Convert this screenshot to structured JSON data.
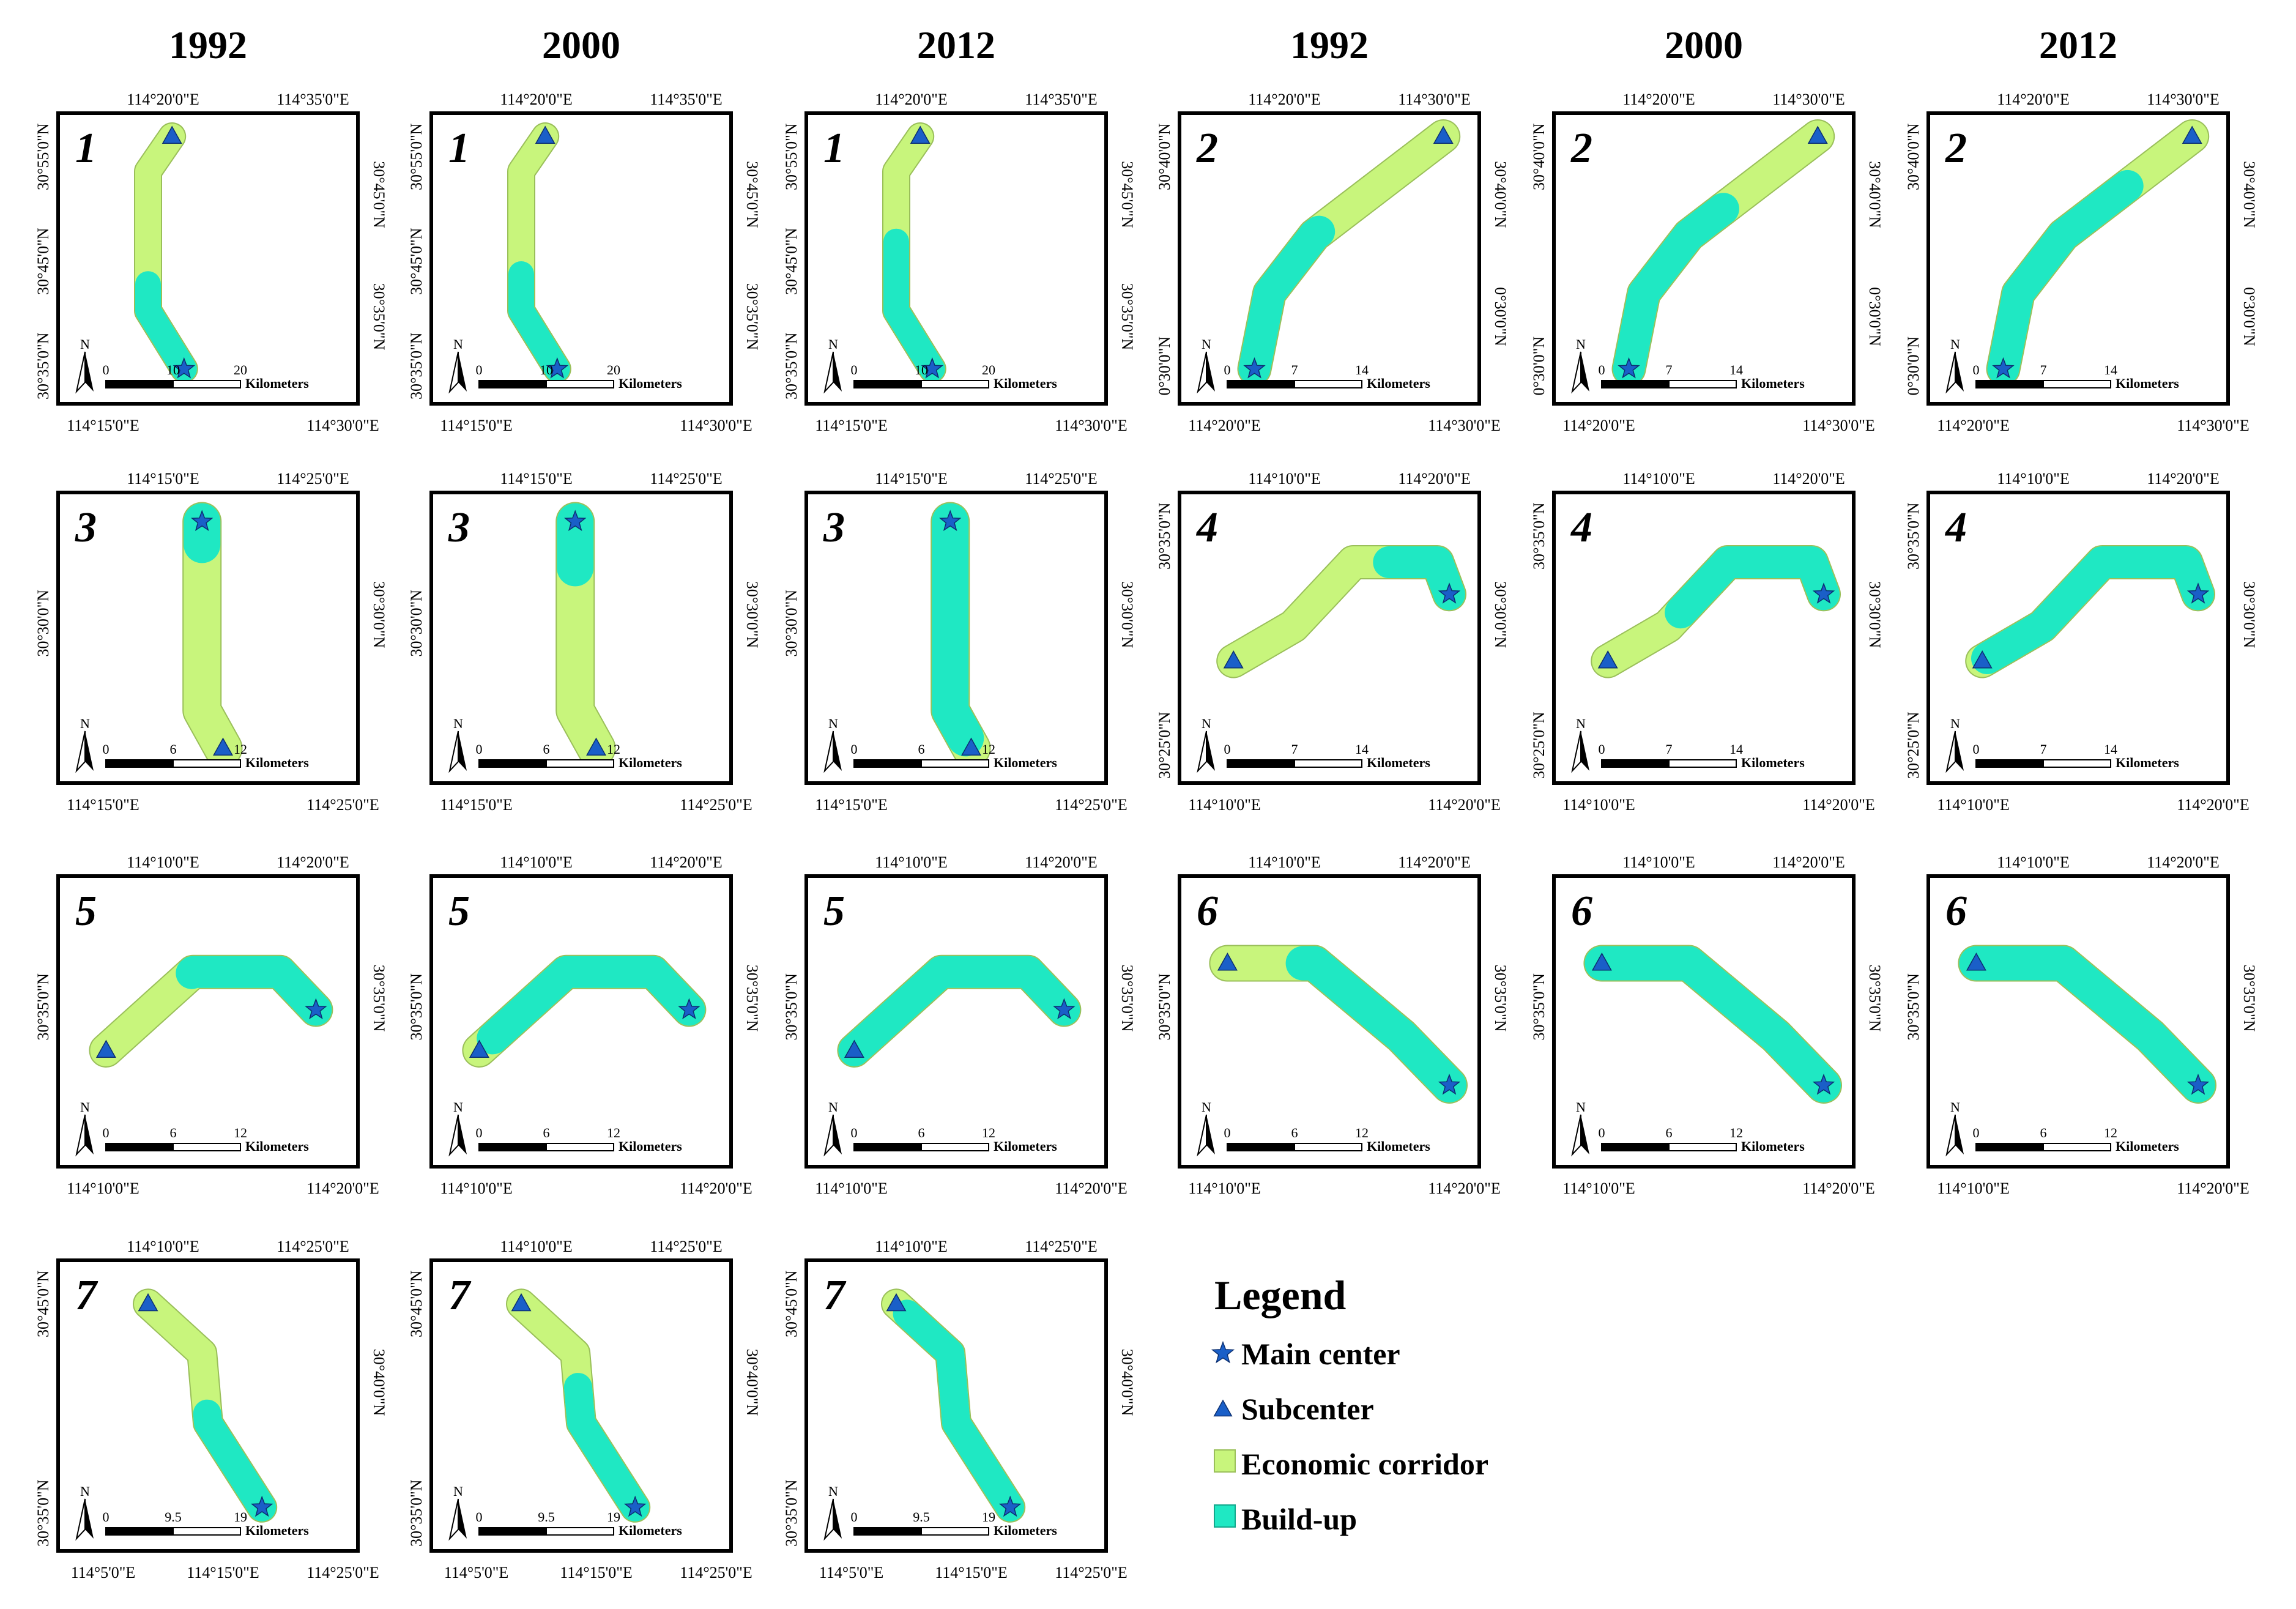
{
  "colors": {
    "economic_corridor": "#c8f57c",
    "build_up": "#1fe8c3",
    "marker": "#1a5fc8",
    "frame": "#000000"
  },
  "columns": [
    {
      "year": "1992"
    },
    {
      "year": "2000"
    },
    {
      "year": "2012"
    },
    {
      "year": "1992"
    },
    {
      "year": "2000"
    },
    {
      "year": "2012"
    }
  ],
  "corridor_sets": [
    {
      "number": "1",
      "top_labels": [
        "114°20'0\"E",
        "114°35'0\"E"
      ],
      "bottom_labels": [
        "114°15'0\"E",
        "114°30'0\"E"
      ],
      "left_labels": [
        "30°55'0\"N",
        "30°45'0\"N",
        "30°35'0\"N"
      ],
      "right_labels": [
        "30°45'0\"N",
        "30°35'0\"N"
      ],
      "scale": [
        "0",
        "10",
        "20",
        "Kilometers"
      ],
      "main_center": "bottom",
      "build_up_share": [
        0.38,
        0.42,
        0.55
      ]
    },
    {
      "number": "2",
      "top_labels": [
        "114°20'0\"E",
        "114°30'0\"E"
      ],
      "bottom_labels": [
        "114°20'0\"E",
        "114°30'0\"E"
      ],
      "left_labels": [
        "30°40'0\"N",
        "0°30'0\"N"
      ],
      "right_labels": [
        "30°40'0\"N",
        "0°30'0\"N"
      ],
      "scale": [
        "0",
        "7",
        "14",
        "Kilometers"
      ],
      "main_center": "bottom",
      "build_up_share": [
        0.5,
        0.62,
        0.74
      ]
    },
    {
      "number": "3",
      "top_labels": [
        "114°15'0\"E",
        "114°25'0\"E"
      ],
      "bottom_labels": [
        "114°15'0\"E",
        "114°25'0\"E"
      ],
      "left_labels": [
        "30°30'0\"N"
      ],
      "right_labels": [
        "30°30'0\"N"
      ],
      "scale": [
        "0",
        "6",
        "12",
        "Kilometers"
      ],
      "main_center": "top",
      "build_up_share": [
        0.1,
        0.2,
        0.95
      ]
    },
    {
      "number": "4",
      "top_labels": [
        "114°10'0\"E",
        "114°20'0\"E"
      ],
      "bottom_labels": [
        "114°10'0\"E",
        "114°20'0\"E"
      ],
      "left_labels": [
        "30°35'0\"N",
        "30°25'0\"N"
      ],
      "right_labels": [
        "30°30'0\"N"
      ],
      "scale": [
        "0",
        "7",
        "14",
        "Kilometers"
      ],
      "main_center": "end",
      "build_up_share": [
        0.3,
        0.68,
        0.98
      ]
    },
    {
      "number": "5",
      "top_labels": [
        "114°10'0\"E",
        "114°20'0\"E"
      ],
      "bottom_labels": [
        "114°10'0\"E",
        "114°20'0\"E"
      ],
      "left_labels": [
        "30°35'0\"N"
      ],
      "right_labels": [
        "30°35'0\"N"
      ],
      "scale": [
        "0",
        "6",
        "12",
        "Kilometers"
      ],
      "main_center": "end",
      "build_up_share": [
        0.55,
        0.93,
        1.0
      ]
    },
    {
      "number": "6",
      "top_labels": [
        "114°10'0\"E",
        "114°20'0\"E"
      ],
      "bottom_labels": [
        "114°10'0\"E",
        "114°20'0\"E"
      ],
      "left_labels": [
        "30°35'0\"N"
      ],
      "right_labels": [
        "30°35'0\"N"
      ],
      "scale": [
        "0",
        "6",
        "12",
        "Kilometers"
      ],
      "main_center": "end",
      "build_up_share": [
        0.72,
        1.0,
        1.0
      ]
    },
    {
      "number": "7",
      "top_labels": [
        "114°10'0\"E",
        "114°25'0\"E"
      ],
      "bottom_labels": [
        "114°5'0\"E",
        "114°15'0\"E",
        "114°25'0\"E"
      ],
      "left_labels": [
        "30°45'0\"N",
        "30°35'0\"N"
      ],
      "right_labels": [
        "30°40'0\"N"
      ],
      "scale": [
        "0",
        "9.5",
        "19",
        "Kilometers"
      ],
      "main_center": "end",
      "build_up_share": [
        0.45,
        0.56,
        0.94
      ]
    }
  ],
  "legend": {
    "title": "Legend",
    "items": [
      {
        "label": "Main center",
        "symbol": "star"
      },
      {
        "label": "Subcenter",
        "symbol": "triangle"
      },
      {
        "label": "Economic corridor",
        "symbol": "corridor"
      },
      {
        "label": "Build-up",
        "symbol": "buildup"
      }
    ]
  },
  "north_label": "N"
}
